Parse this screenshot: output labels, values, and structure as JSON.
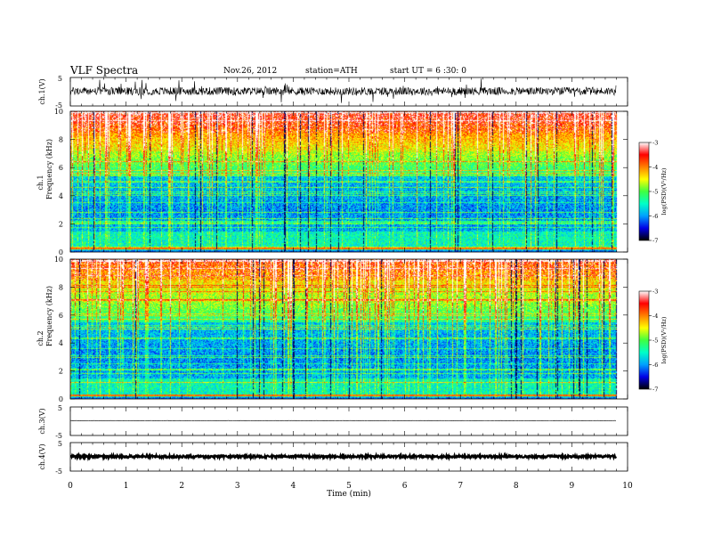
{
  "header": {
    "title": "VLF  Spectra",
    "date": "Nov.26, 2012",
    "station": "station=ATH",
    "start_time": "start  UT  =   6  :30: 0"
  },
  "chart_data": [
    {
      "type": "line",
      "panel": "ch1-waveform",
      "ylabel": "ch.1(V)",
      "ylim": [
        -5,
        5
      ],
      "yticks": [
        "5",
        "-5"
      ],
      "baseline_v": 0.2,
      "noise_amplitude_v": 1.4
    },
    {
      "type": "heatmap",
      "panel": "ch1-spectrogram",
      "ylabel_top": "ch.1",
      "ylabel": "Frequency  (kHz)",
      "ylim": [
        0,
        10
      ],
      "yticks": [
        "0",
        "2",
        "4",
        "6",
        "8",
        "10"
      ],
      "colorbar": {
        "label": "log(PSD)(V²/Hz)",
        "range": [
          -7,
          -3
        ],
        "ticks": [
          "-3",
          "-4",
          "-5",
          "-6",
          "-7"
        ],
        "colors": [
          "#000000",
          "#0000e6",
          "#00a0ff",
          "#00ffc8",
          "#40ff40",
          "#ffff00",
          "#ff8000",
          "#ff0000",
          "#ffffff"
        ]
      }
    },
    {
      "type": "heatmap",
      "panel": "ch2-spectrogram",
      "ylabel_top": "ch.2",
      "ylabel": "Frequency  (kHz)",
      "ylim": [
        0,
        10
      ],
      "yticks": [
        "0",
        "2",
        "4",
        "6",
        "8",
        "10"
      ],
      "colorbar": {
        "label": "log(PSD)(V²/Hz)",
        "range": [
          -7,
          -3
        ],
        "ticks": [
          "-3",
          "-4",
          "-5",
          "-6",
          "-7"
        ],
        "colors": [
          "#000000",
          "#0000e6",
          "#00a0ff",
          "#00ffc8",
          "#40ff40",
          "#ffff00",
          "#ff8000",
          "#ff0000",
          "#ffffff"
        ]
      }
    },
    {
      "type": "line",
      "panel": "ch3-waveform",
      "ylabel": "ch.3(V)",
      "ylim": [
        -5,
        5
      ],
      "yticks": [
        "5",
        "-5"
      ],
      "baseline_v": 0.2,
      "noise_amplitude_v": 0.05
    },
    {
      "type": "line",
      "panel": "ch4-waveform",
      "ylabel": "ch.4(V)",
      "ylim": [
        -5,
        5
      ],
      "yticks": [
        "5",
        "-5"
      ],
      "baseline_v": 0.1,
      "noise_amplitude_v": 0.4
    }
  ],
  "xaxis": {
    "label": "Time  (min)",
    "range": [
      0,
      10
    ],
    "data_end_min": 9.8,
    "ticks": [
      "0",
      "1",
      "2",
      "3",
      "4",
      "5",
      "6",
      "7",
      "8",
      "9",
      "10"
    ]
  }
}
